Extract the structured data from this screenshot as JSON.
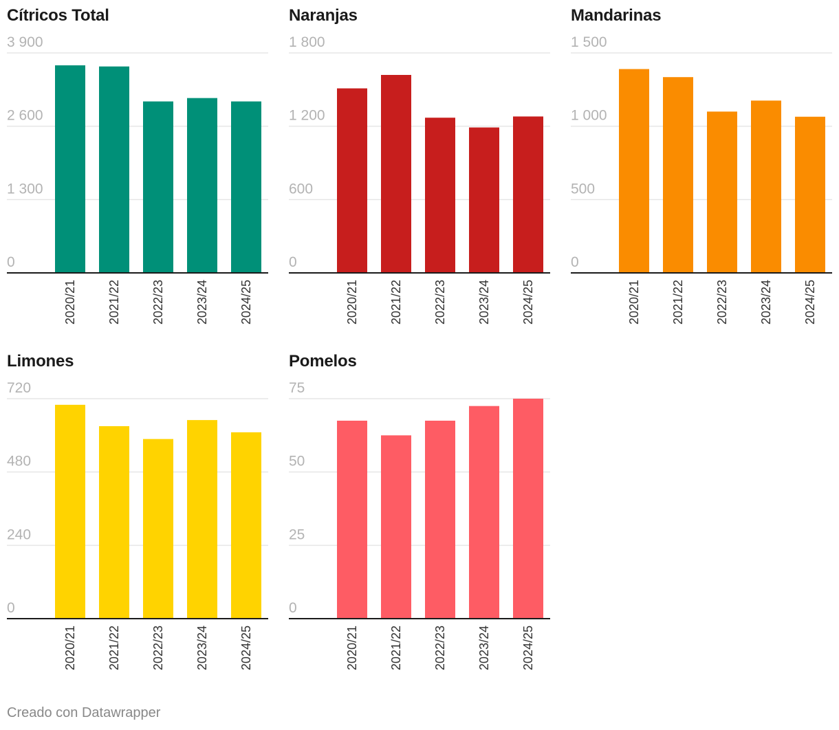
{
  "footer": "Creado con Datawrapper",
  "chart_data": [
    {
      "type": "bar",
      "title": "Cítricos Total",
      "color": "#009078",
      "categories": [
        "2020/21",
        "2021/22",
        "2022/23",
        "2023/24",
        "2024/25"
      ],
      "values": [
        3680,
        3660,
        3040,
        3100,
        3040
      ],
      "ylim": [
        0,
        3900
      ],
      "ticks": [
        0,
        1300,
        2600,
        3900
      ],
      "tick_labels": [
        "0",
        "1 300",
        "2 600",
        "3 900"
      ]
    },
    {
      "type": "bar",
      "title": "Naranjas",
      "color": "#c71e1d",
      "categories": [
        "2020/21",
        "2021/22",
        "2022/23",
        "2023/24",
        "2024/25"
      ],
      "values": [
        1510,
        1620,
        1270,
        1190,
        1280
      ],
      "ylim": [
        0,
        1800
      ],
      "ticks": [
        0,
        600,
        1200,
        1800
      ],
      "tick_labels": [
        "0",
        "600",
        "1 200",
        "1 800"
      ]
    },
    {
      "type": "bar",
      "title": "Mandarinas",
      "color": "#fa8c00",
      "categories": [
        "2020/21",
        "2021/22",
        "2022/23",
        "2023/24",
        "2024/25"
      ],
      "values": [
        1390,
        1335,
        1100,
        1175,
        1065
      ],
      "ylim": [
        0,
        1500
      ],
      "ticks": [
        0,
        500,
        1000,
        1500
      ],
      "tick_labels": [
        "0",
        "500",
        "1 000",
        "1 500"
      ]
    },
    {
      "type": "bar",
      "title": "Limones",
      "color": "#ffd300",
      "categories": [
        "2020/21",
        "2021/22",
        "2022/23",
        "2023/24",
        "2024/25"
      ],
      "values": [
        700,
        630,
        588,
        650,
        610
      ],
      "ylim": [
        0,
        720
      ],
      "ticks": [
        0,
        240,
        480,
        720
      ],
      "tick_labels": [
        "0",
        "240",
        "480",
        "720"
      ]
    },
    {
      "type": "bar",
      "title": "Pomelos",
      "color": "#fe5c64",
      "categories": [
        "2020/21",
        "2021/22",
        "2022/23",
        "2023/24",
        "2024/25"
      ],
      "values": [
        67.5,
        62.5,
        67.5,
        72.5,
        75
      ],
      "ylim": [
        0,
        75
      ],
      "ticks": [
        0,
        25,
        50,
        75
      ],
      "tick_labels": [
        "0",
        "25",
        "50",
        "75"
      ]
    }
  ]
}
